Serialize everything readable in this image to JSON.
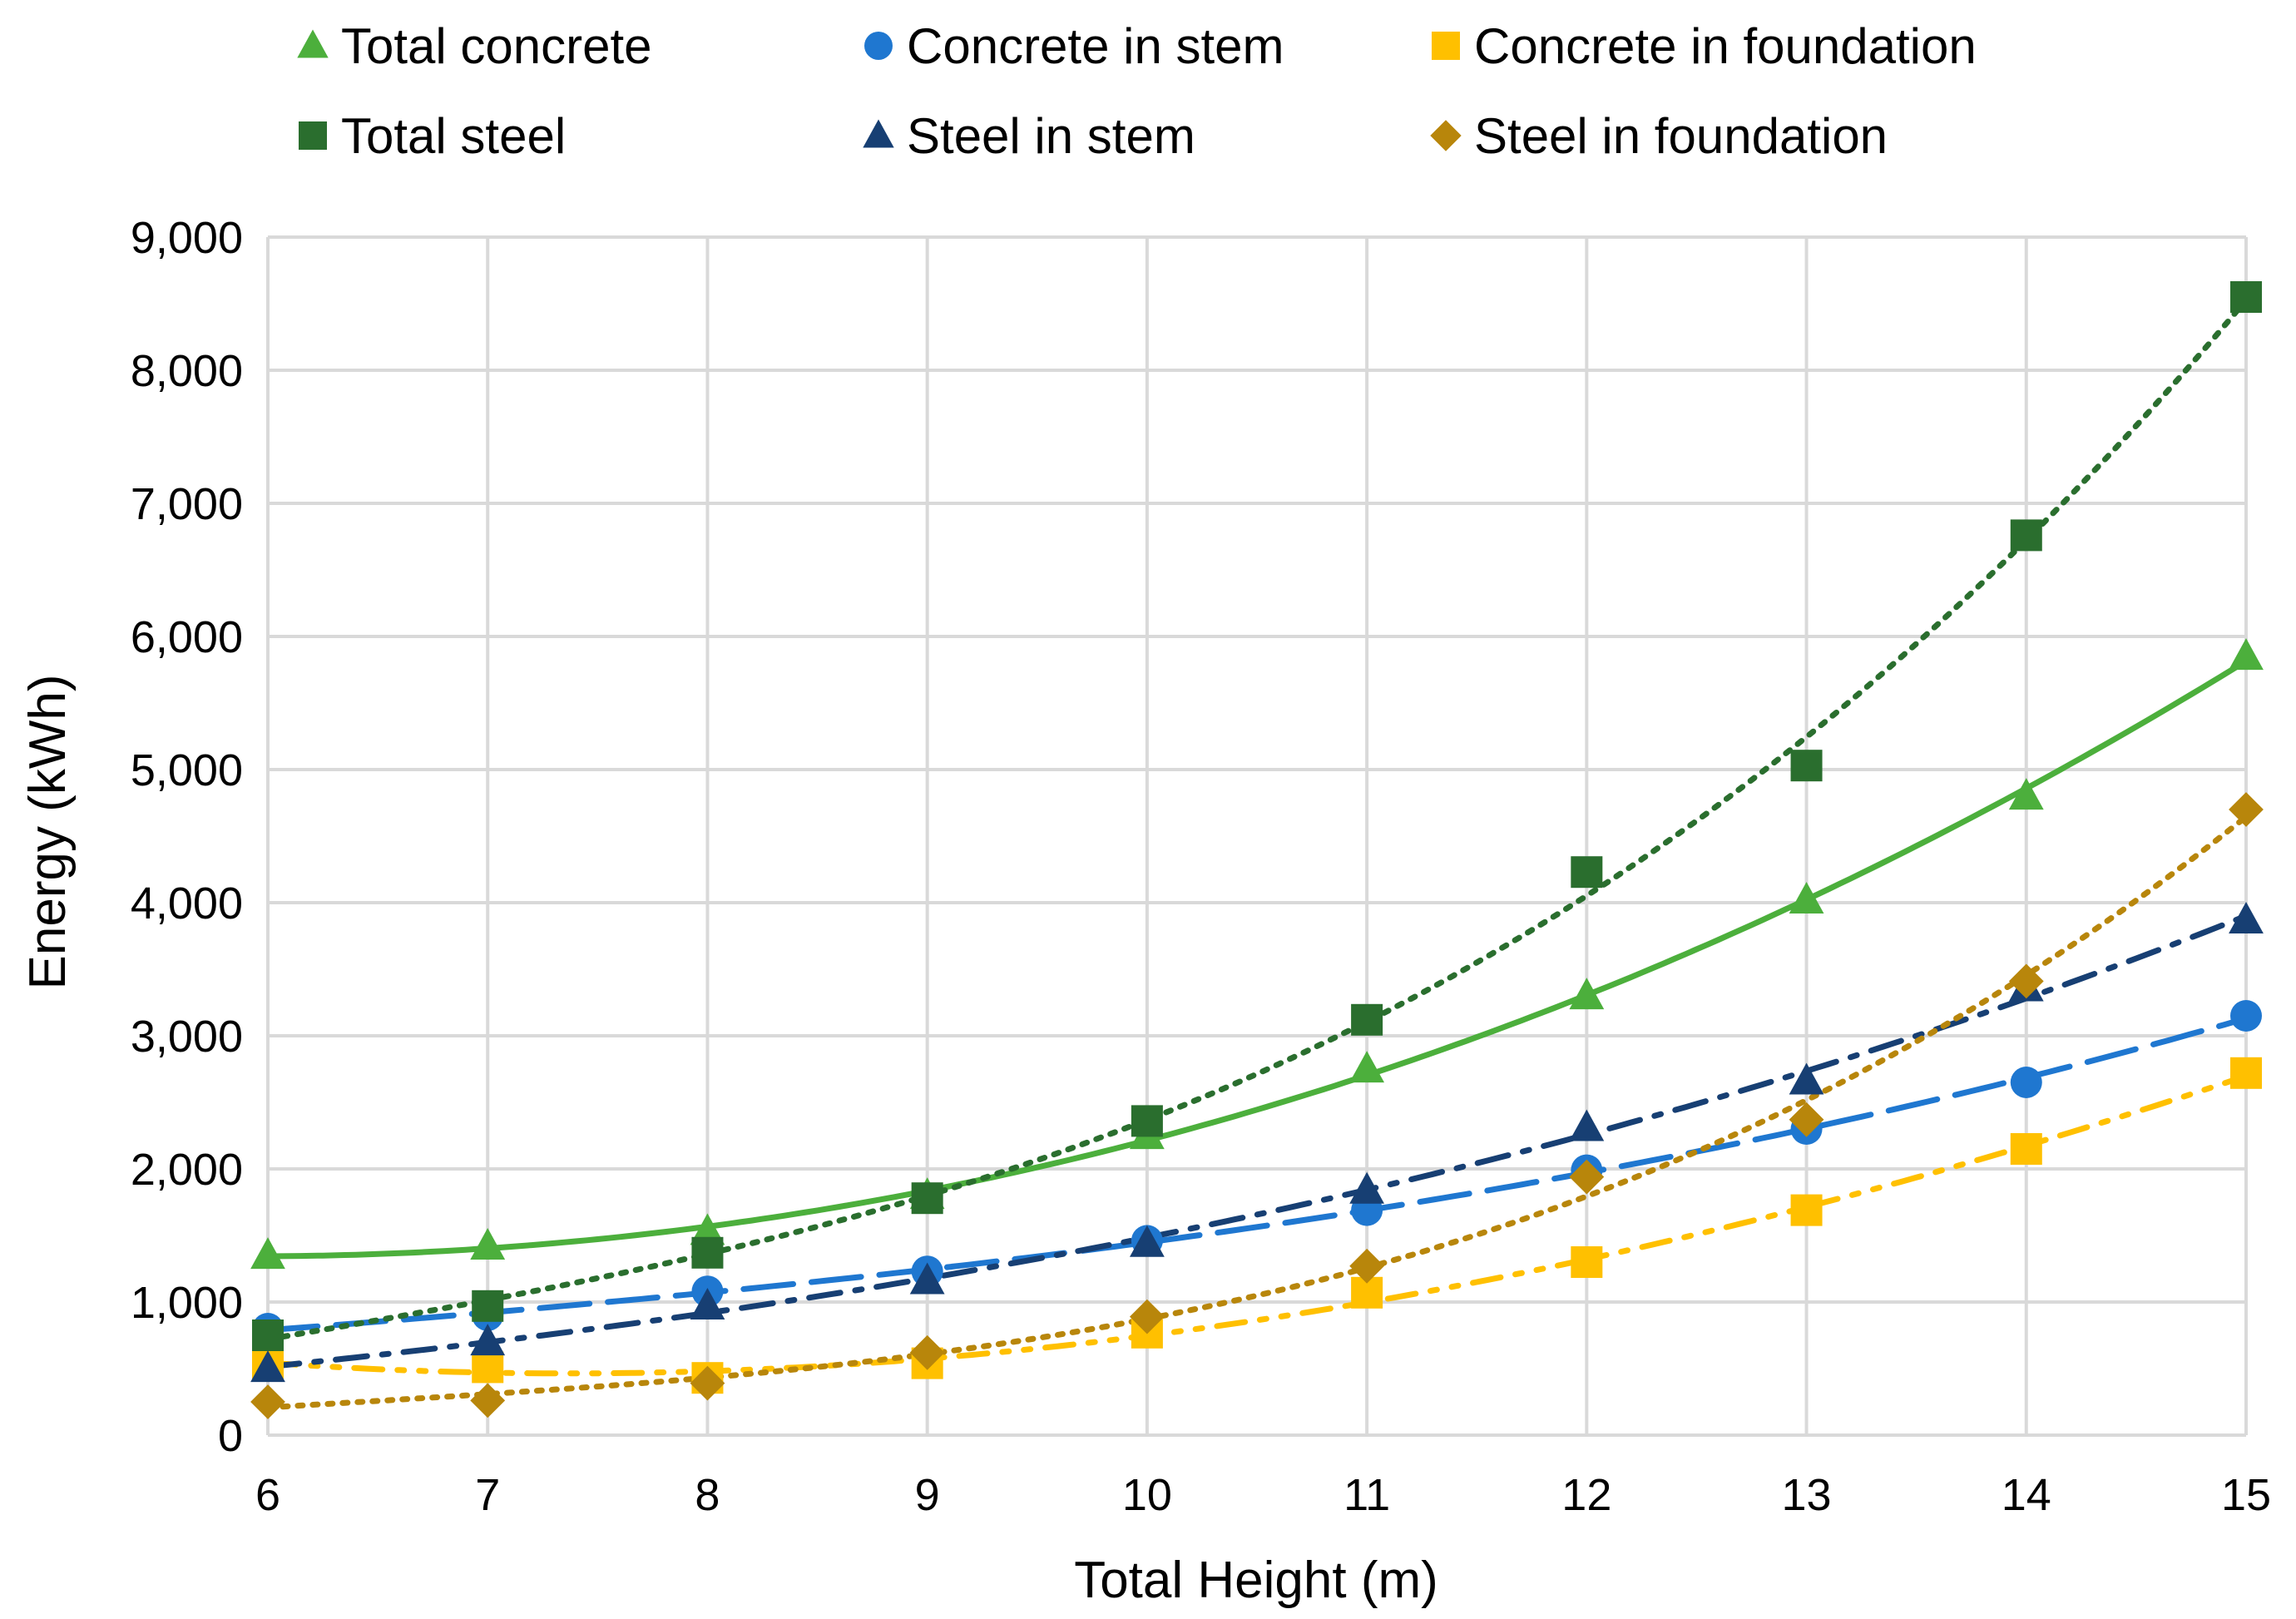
{
  "chart_data": {
    "type": "scatter",
    "title": "",
    "xlabel": "Total Height (m)",
    "ylabel": "Energy (kWh)",
    "xlim": [
      6,
      15
    ],
    "ylim": [
      0,
      9000
    ],
    "x_ticks": [
      "6",
      "7",
      "8",
      "9",
      "10",
      "11",
      "12",
      "13",
      "14",
      "15"
    ],
    "y_ticks": [
      "0",
      "1,000",
      "2,000",
      "3,000",
      "4,000",
      "5,000",
      "6,000",
      "7,000",
      "8,000",
      "9,000"
    ],
    "x": [
      6,
      7,
      8,
      9,
      10,
      11,
      12,
      13,
      14,
      15
    ],
    "grid": true,
    "legend_position": "top",
    "trendline": "polynomial",
    "series": [
      {
        "name": "Total concrete",
        "marker": "triangle",
        "color": "#4caf3c",
        "dash": "solid",
        "values": [
          1350,
          1420,
          1530,
          1800,
          2250,
          2750,
          3300,
          4020,
          4800,
          5850
        ]
      },
      {
        "name": "Concrete in stem",
        "marker": "circle",
        "color": "#1f77d0",
        "dash": "longdash",
        "values": [
          800,
          900,
          1080,
          1230,
          1460,
          1690,
          1990,
          2300,
          2650,
          3150
        ]
      },
      {
        "name": "Concrete in foundation",
        "marker": "square",
        "color": "#ffc000",
        "dash": "dashdotdot",
        "values": [
          540,
          510,
          430,
          540,
          770,
          1070,
          1300,
          1690,
          2150,
          2720
        ]
      },
      {
        "name": "Total steel",
        "marker": "square",
        "color": "#2a6e2e",
        "dash": "dotted",
        "values": [
          750,
          970,
          1370,
          1780,
          2360,
          3120,
          4230,
          5030,
          6760,
          8550
        ]
      },
      {
        "name": "Steel in stem",
        "marker": "triangle",
        "color": "#173f73",
        "dash": "dashdot",
        "values": [
          500,
          700,
          970,
          1160,
          1440,
          1840,
          2310,
          2660,
          3360,
          3870
        ]
      },
      {
        "name": "Steel in foundation",
        "marker": "diamond",
        "color": "#b8860b",
        "dash": "dotted",
        "values": [
          250,
          260,
          390,
          620,
          890,
          1270,
          1940,
          2370,
          3410,
          4700
        ]
      }
    ]
  }
}
